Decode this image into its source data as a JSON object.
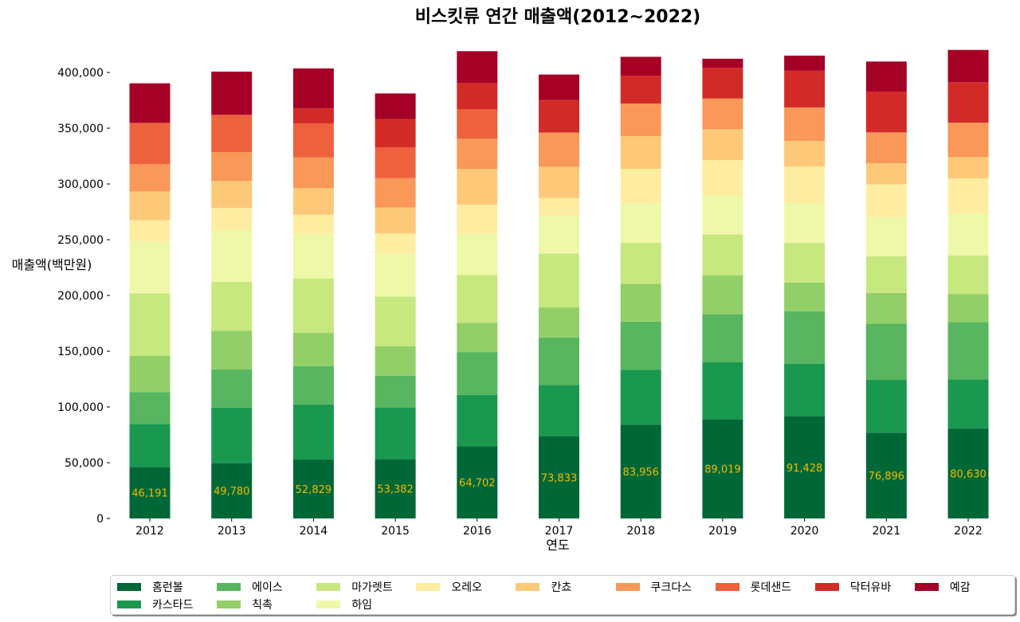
{
  "chart_data": {
    "type": "bar",
    "stacked": true,
    "title": "비스킷류 연간 매출액(2012~2022)",
    "xlabel": "연도",
    "ylabel": "매출액(백만원)",
    "ylim": [
      0,
      420000
    ],
    "yticks": [
      0,
      50000,
      100000,
      150000,
      200000,
      250000,
      300000,
      350000,
      400000
    ],
    "ytick_labels": [
      "0",
      "50,000",
      "100,000",
      "150,000",
      "200,000",
      "250,000",
      "300,000",
      "350,000",
      "400,000"
    ],
    "grid": false,
    "legend_position": "bottom",
    "categories": [
      "2012",
      "2013",
      "2014",
      "2015",
      "2016",
      "2017",
      "2018",
      "2019",
      "2020",
      "2021",
      "2022"
    ],
    "series": [
      {
        "name": "홈런볼",
        "color": "#006837",
        "values": [
          46191,
          49780,
          52829,
          53382,
          64702,
          73833,
          83956,
          89019,
          91428,
          76896,
          80630
        ]
      },
      {
        "name": "카스타드",
        "color": "#1a9850",
        "values": [
          38600,
          49700,
          49500,
          45900,
          46100,
          45900,
          49500,
          51000,
          47400,
          47400,
          44100
        ]
      },
      {
        "name": "에이스",
        "color": "#57b65f",
        "values": [
          28600,
          34100,
          34300,
          28800,
          38400,
          42600,
          43100,
          43300,
          47100,
          50400,
          51400
        ]
      },
      {
        "name": "칙촉",
        "color": "#93cf68",
        "values": [
          32600,
          34800,
          30000,
          26200,
          26200,
          26900,
          33900,
          34800,
          25700,
          27600,
          25200
        ]
      },
      {
        "name": "마가렛트",
        "color": "#c7e77f",
        "values": [
          55900,
          43800,
          48600,
          44800,
          42900,
          48300,
          36900,
          36600,
          35700,
          32900,
          34600
        ]
      },
      {
        "name": "하임",
        "color": "#eef8a8",
        "values": [
          46400,
          46400,
          40000,
          38300,
          37100,
          34100,
          35300,
          35300,
          35500,
          34800,
          37600
        ]
      },
      {
        "name": "오레오",
        "color": "#feeda1",
        "values": [
          19100,
          20000,
          17100,
          18400,
          26100,
          15700,
          30900,
          31400,
          32900,
          29700,
          31400
        ]
      },
      {
        "name": "칸쵸",
        "color": "#fdc978",
        "values": [
          25900,
          24100,
          24100,
          23100,
          31900,
          28100,
          29300,
          27600,
          22900,
          18900,
          19100
        ]
      },
      {
        "name": "쿠크다스",
        "color": "#f99858",
        "values": [
          24600,
          25900,
          27400,
          26400,
          27100,
          30700,
          29300,
          27600,
          30000,
          27600,
          30900
        ]
      },
      {
        "name": "롯데샌드",
        "color": "#ee613d",
        "values": [
          36900,
          33400,
          30500,
          27600,
          26400,
          0,
          0,
          0,
          0,
          0,
          0
        ]
      },
      {
        "name": "닥터유바",
        "color": "#d22b27",
        "values": [
          0,
          0,
          13400,
          25200,
          23800,
          29100,
          25000,
          27600,
          32900,
          36700,
          36400
        ]
      },
      {
        "name": "예감",
        "color": "#a50026",
        "values": [
          35500,
          38800,
          35900,
          23100,
          28400,
          22900,
          16900,
          8100,
          13600,
          26900,
          28900
        ]
      }
    ],
    "data_labels": {
      "series": "홈런볼",
      "values": [
        "46,191",
        "49,780",
        "52,829",
        "53,382",
        "64,702",
        "73,833",
        "83,956",
        "89,019",
        "91,428",
        "76,896",
        "80,630"
      ],
      "color": "#f5b800"
    }
  }
}
